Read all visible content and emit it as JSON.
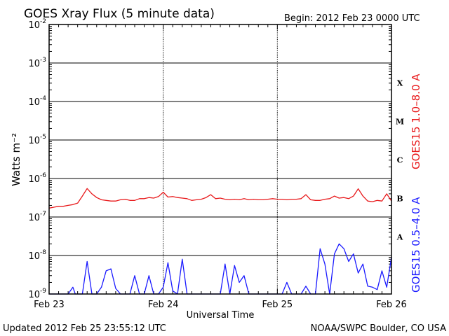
{
  "header": {
    "title": "GOES Xray Flux (5 minute data)",
    "begin": "Begin:  2012 Feb 23 0000 UTC"
  },
  "footer": {
    "updated": "Updated 2012 Feb 25 23:55:12 UTC",
    "credit": "NOAA/SWPC Boulder, CO USA"
  },
  "colors": {
    "long_channel": "#e8191b",
    "short_channel": "#1a1aff",
    "axis": "#000000"
  },
  "chart_data": {
    "type": "line",
    "title": "GOES Xray Flux (5 minute data)",
    "xlabel": "Universal Time",
    "ylabel": "Watts m⁻²",
    "y_scale": "log",
    "ylim": [
      1e-09,
      0.01
    ],
    "xlim": [
      "2012-02-23 00:00",
      "2012-02-26 00:00"
    ],
    "x_tick_labels": [
      "Feb 23",
      "Feb 24",
      "Feb 25",
      "Feb 26"
    ],
    "y_tick_labels": [
      {
        "base": "10",
        "exp": "-2"
      },
      {
        "base": "10",
        "exp": "-3"
      },
      {
        "base": "10",
        "exp": "-4"
      },
      {
        "base": "10",
        "exp": "-5"
      },
      {
        "base": "10",
        "exp": "-6"
      },
      {
        "base": "10",
        "exp": "-7"
      },
      {
        "base": "10",
        "exp": "-8"
      },
      {
        "base": "10",
        "exp": "-9"
      }
    ],
    "flare_classes": [
      "X",
      "M",
      "C",
      "B",
      "A"
    ],
    "grid": true,
    "series": [
      {
        "name": "GOES15 1.0–8.0 A",
        "color": "#e8191b",
        "x_hours": [
          0,
          1,
          2,
          3,
          4,
          5,
          6,
          7,
          8,
          9,
          10,
          11,
          12,
          13,
          14,
          15,
          16,
          17,
          18,
          19,
          20,
          21,
          22,
          23,
          24,
          25,
          26,
          27,
          28,
          29,
          30,
          31,
          32,
          33,
          34,
          35,
          36,
          37,
          38,
          39,
          40,
          41,
          42,
          43,
          44,
          45,
          46,
          47,
          48,
          49,
          50,
          51,
          52,
          53,
          54,
          55,
          56,
          57,
          58,
          59,
          60,
          61,
          62,
          63,
          64,
          65,
          66,
          67,
          68,
          69,
          70,
          71,
          72
        ],
        "values": [
          1.7e-07,
          1.8e-07,
          1.9e-07,
          1.9e-07,
          2e-07,
          2.1e-07,
          2.3e-07,
          3.5e-07,
          5.5e-07,
          4e-07,
          3.2e-07,
          2.8e-07,
          2.7e-07,
          2.6e-07,
          2.6e-07,
          2.8e-07,
          2.9e-07,
          2.7e-07,
          2.7e-07,
          3e-07,
          3e-07,
          3.2e-07,
          3.1e-07,
          3.4e-07,
          4.4e-07,
          3.3e-07,
          3.4e-07,
          3.2e-07,
          3.1e-07,
          3e-07,
          2.7e-07,
          2.8e-07,
          2.9e-07,
          3.2e-07,
          3.8e-07,
          3e-07,
          3.1e-07,
          2.9e-07,
          2.8e-07,
          2.9e-07,
          2.8e-07,
          3e-07,
          2.8e-07,
          2.9e-07,
          2.8e-07,
          2.8e-07,
          2.9e-07,
          3e-07,
          2.9e-07,
          2.9e-07,
          2.8e-07,
          2.9e-07,
          2.9e-07,
          3e-07,
          3.8e-07,
          2.8e-07,
          2.7e-07,
          2.7e-07,
          2.9e-07,
          3e-07,
          3.5e-07,
          3.1e-07,
          3.2e-07,
          3e-07,
          3.5e-07,
          5.4e-07,
          3.5e-07,
          2.6e-07,
          2.5e-07,
          2.7e-07,
          2.6e-07,
          4e-07,
          2.6e-07
        ]
      },
      {
        "name": "GOES15 0.5–4.0 A",
        "color": "#1a1aff",
        "x_hours": [
          0,
          2,
          4,
          5,
          5.5,
          6,
          7,
          8,
          9,
          10,
          11,
          12,
          13,
          14,
          15,
          16,
          17,
          18,
          19,
          20,
          21,
          22,
          23,
          24,
          25,
          26,
          27,
          28,
          29,
          30,
          31,
          32,
          33,
          34,
          35,
          36,
          37,
          38,
          39,
          40,
          41,
          42,
          43,
          44,
          45,
          46,
          47,
          48,
          49,
          50,
          51,
          52,
          53,
          54,
          55,
          56,
          57,
          58,
          59,
          60,
          61,
          62,
          63,
          64,
          65,
          66,
          67,
          68,
          69,
          70,
          71,
          72
        ],
        "values": [
          1e-09,
          1e-09,
          1e-09,
          1.5e-09,
          1e-09,
          1e-09,
          1e-09,
          7e-09,
          1e-09,
          1e-09,
          1.5e-09,
          4e-09,
          4.5e-09,
          1.4e-09,
          1e-09,
          1e-09,
          1e-09,
          3e-09,
          1e-09,
          1e-09,
          3e-09,
          1e-09,
          1e-09,
          1.5e-09,
          6.5e-09,
          1.2e-09,
          1e-09,
          8e-09,
          1e-09,
          1e-09,
          1e-09,
          1e-09,
          1e-09,
          1e-09,
          1e-09,
          1e-09,
          6e-09,
          1e-09,
          5.5e-09,
          2e-09,
          3e-09,
          1e-09,
          1e-09,
          1e-09,
          1e-09,
          1e-09,
          1e-09,
          1e-09,
          1e-09,
          2e-09,
          1e-09,
          1e-09,
          1e-09,
          1.6e-09,
          1e-09,
          1e-09,
          1.5e-08,
          6e-09,
          1e-09,
          1.1e-08,
          2e-08,
          1.5e-08,
          7e-09,
          1.1e-08,
          3.5e-09,
          6e-09,
          1.6e-09,
          1.5e-09,
          1.3e-09,
          4e-09,
          1.5e-09,
          9e-09
        ]
      }
    ]
  }
}
